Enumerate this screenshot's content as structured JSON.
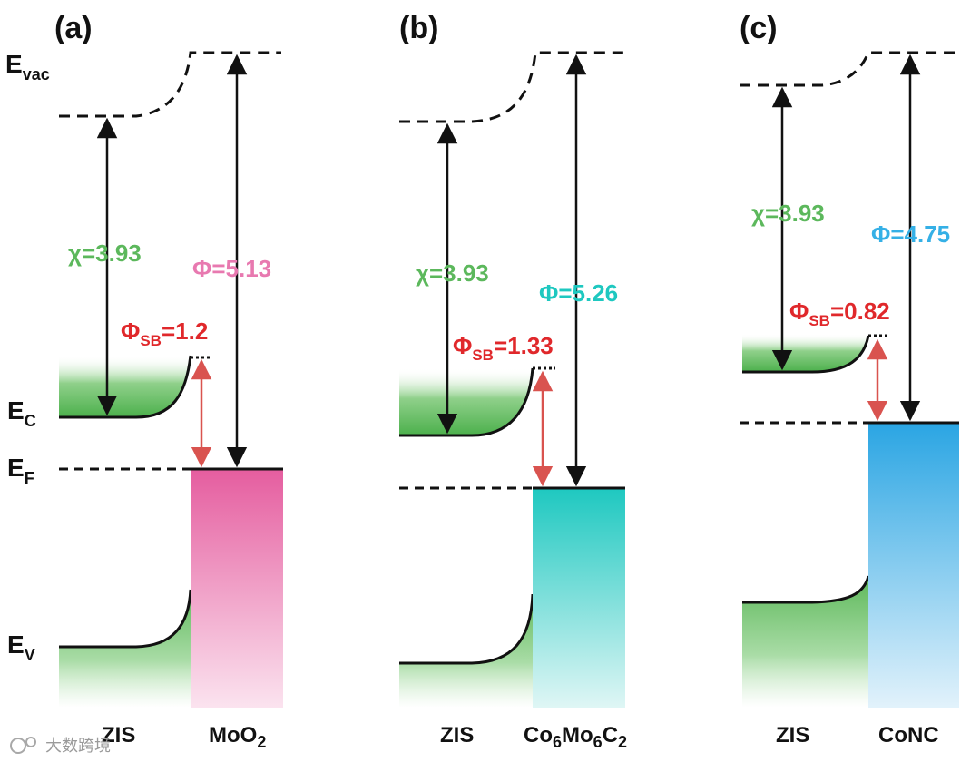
{
  "figure": {
    "energy_axis": {
      "e_vac": {
        "main": "E",
        "sub": "vac"
      },
      "e_c": {
        "main": "E",
        "sub": "C"
      },
      "e_f": {
        "main": "E",
        "sub": "F"
      },
      "e_v": {
        "main": "E",
        "sub": "V"
      }
    },
    "panels": [
      {
        "id": "a",
        "label": "(a)",
        "semiconductor": {
          "name": "ZIS",
          "chi_symbol": "χ",
          "chi_value": "=3.93",
          "chi_color": "#5cb85c"
        },
        "metal": {
          "parts": [
            {
              "t": "MoO"
            },
            {
              "t": "2",
              "sub": true
            }
          ],
          "phi_text": "Φ=5.13",
          "phi_color": "#e879b0",
          "fill_top": "#e55d9f",
          "fill_bottom": "#fbe3ef"
        },
        "schottky": {
          "symbol": "Φ",
          "sub": "SB",
          "value": "=1.2",
          "color": "#e0282b"
        }
      },
      {
        "id": "b",
        "label": "(b)",
        "semiconductor": {
          "name": "ZIS",
          "chi_symbol": "χ",
          "chi_value": "=3.93",
          "chi_color": "#5cb85c"
        },
        "metal": {
          "parts": [
            {
              "t": "Co"
            },
            {
              "t": "6",
              "sub": true
            },
            {
              "t": "Mo"
            },
            {
              "t": "6",
              "sub": true
            },
            {
              "t": "C"
            },
            {
              "t": "2",
              "sub": true
            }
          ],
          "phi_text": "Φ=5.26",
          "phi_color": "#1ec8c0",
          "fill_top": "#1ec8c0",
          "fill_bottom": "#dff6f5"
        },
        "schottky": {
          "symbol": "Φ",
          "sub": "SB",
          "value": "=1.33",
          "color": "#e0282b"
        }
      },
      {
        "id": "c",
        "label": "(c)",
        "semiconductor": {
          "name": "ZIS",
          "chi_symbol": "χ",
          "chi_value": "=3.93",
          "chi_color": "#5cb85c"
        },
        "metal": {
          "parts": [
            {
              "t": "CoNC"
            }
          ],
          "phi_text": "Φ=4.75",
          "phi_color": "#35b0e6",
          "fill_top": "#2aa5e3",
          "fill_bottom": "#e2f2fb"
        },
        "schottky": {
          "symbol": "Φ",
          "sub": "SB",
          "value": "=0.82",
          "color": "#e0282b"
        }
      }
    ],
    "watermark": "大数跨境"
  }
}
